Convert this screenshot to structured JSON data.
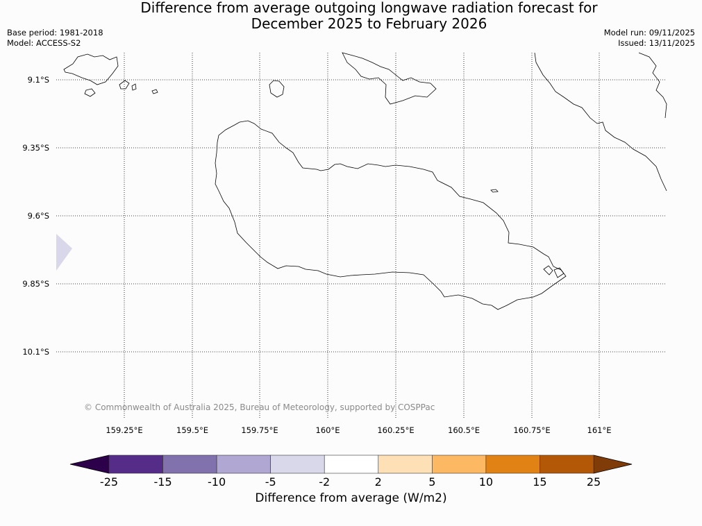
{
  "title": {
    "line1": "Difference from average outgoing longwave radiation forecast for",
    "line2": "December 2025 to February 2026"
  },
  "meta_left": {
    "base_period": "Base period: 1981-2018",
    "model": "Model: ACCESS-S2"
  },
  "meta_right": {
    "model_run": "Model run: 09/11/2025",
    "issued": "Issued: 13/11/2025"
  },
  "map": {
    "lat_labels": [
      "9.1°S",
      "9.35°S",
      "9.6°S",
      "9.85°S",
      "10.1°S"
    ],
    "lon_labels": [
      "159.25°E",
      "159.5°E",
      "159.75°E",
      "160°E",
      "160.25°E",
      "160.5°E",
      "160.75°E",
      "161°E"
    ],
    "copyright": "© Commonwealth of Australia 2025, Bureau of Meteorology, supported by COSPPac",
    "anomaly_patch": {
      "value_range": "-5 to -2",
      "color": "#d8d8ea"
    }
  },
  "colorbar": {
    "tick_labels": [
      "-25",
      "-15",
      "-10",
      "-5",
      "-2",
      "2",
      "5",
      "10",
      "15",
      "25"
    ],
    "colors": [
      "#552d89",
      "#8172ad",
      "#b0a8d2",
      "#d8d8ea",
      "#ffffff",
      "#fee0b6",
      "#fdb863",
      "#e08214",
      "#b35806"
    ],
    "under_color": "#2d004b",
    "over_color": "#7f3b08",
    "label": "Difference from average (W/m2)"
  }
}
